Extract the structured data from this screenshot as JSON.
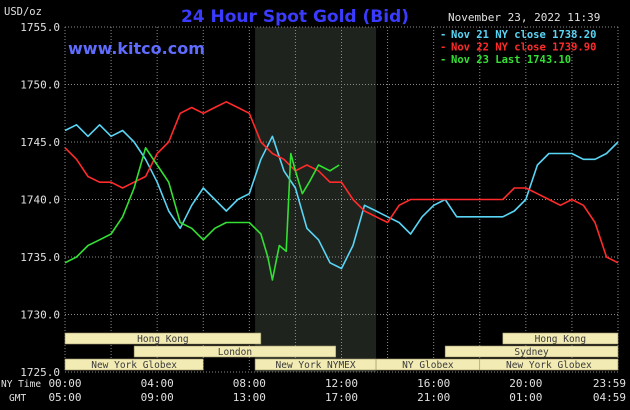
{
  "header": {
    "title": "24 Hour Spot Gold (Bid)",
    "units": "USD/oz",
    "timestamp": "November 23, 2022 11:39",
    "watermark": "www.kitco.com"
  },
  "colors": {
    "background": "#000000",
    "title": "#3b3bff",
    "grid": "#8a8a8a",
    "axis_text": "#e0e0e0",
    "shade": "#1e231e",
    "session_bar_bg": "#f2ebb4",
    "session_bar_text": "#3a3a3a",
    "watermark": "#5f6cff",
    "series": [
      "#59d5f5",
      "#ff2b2b",
      "#33e033"
    ]
  },
  "chart_data": {
    "type": "line",
    "title": "24 Hour Spot Gold (Bid)",
    "ylabel": "USD/oz",
    "ylim": [
      1725,
      1755
    ],
    "y_ticks": [
      "1755.0",
      "1750.0",
      "1745.0",
      "1740.0",
      "1735.0",
      "1730.0",
      "1725.0"
    ],
    "xlim_hours": [
      0,
      24
    ],
    "x_ticks_ny": [
      "00:00",
      "04:00",
      "08:00",
      "12:00",
      "16:00",
      "20:00",
      "23:59"
    ],
    "x_ticks_gmt": [
      "05:00",
      "09:00",
      "13:00",
      "17:00",
      "21:00",
      "01:00",
      "04:59"
    ],
    "x_axis_labels": [
      "NY Time",
      "GMT"
    ],
    "grid": true,
    "legend_position": "top-right",
    "series": [
      {
        "name": "Nov 21 NY close",
        "legend": "Nov 21 NY close 1738.20",
        "color": "#59d5f5",
        "x": [
          0,
          0.5,
          1,
          1.5,
          2,
          2.5,
          3,
          3.5,
          4,
          4.5,
          5,
          5.5,
          6,
          6.5,
          7,
          7.5,
          8,
          8.5,
          9,
          9.5,
          10,
          10.5,
          11,
          11.5,
          12,
          12.5,
          13,
          13.5,
          14,
          14.5,
          15,
          15.5,
          16,
          16.5,
          17,
          17.5,
          18,
          18.5,
          19,
          19.5,
          20,
          20.5,
          21,
          21.5,
          22,
          22.5,
          23,
          23.5,
          24
        ],
        "y": [
          1746,
          1746.5,
          1745.5,
          1746.5,
          1745.5,
          1746,
          1745,
          1743.5,
          1741.5,
          1739,
          1737.5,
          1739.5,
          1741,
          1740,
          1739,
          1740,
          1740.5,
          1743.5,
          1745.5,
          1742.5,
          1741,
          1737.5,
          1736.5,
          1734.5,
          1734,
          1736,
          1739.5,
          1739,
          1738.5,
          1738,
          1737,
          1738.5,
          1739.5,
          1740,
          1738.5,
          1738.5,
          1738.5,
          1738.5,
          1738.5,
          1739,
          1740,
          1743,
          1744,
          1744,
          1744,
          1743.5,
          1743.5,
          1744,
          1745
        ]
      },
      {
        "name": "Nov 22 NY close",
        "legend": "Nov 22 NY close 1739.90",
        "color": "#ff2b2b",
        "x": [
          0,
          0.5,
          1,
          1.5,
          2,
          2.5,
          3,
          3.5,
          4,
          4.5,
          5,
          5.5,
          6,
          6.5,
          7,
          7.5,
          8,
          8.5,
          9,
          9.5,
          10,
          10.5,
          11,
          11.5,
          12,
          12.5,
          13,
          13.5,
          14,
          14.5,
          15,
          15.5,
          16,
          16.5,
          17,
          17.5,
          18,
          18.5,
          19,
          19.5,
          20,
          20.5,
          21,
          21.5,
          22,
          22.5,
          23,
          23.5,
          24
        ],
        "y": [
          1744.5,
          1743.5,
          1742,
          1741.5,
          1741.5,
          1741,
          1741.5,
          1742,
          1744,
          1745,
          1747.5,
          1748,
          1747.5,
          1748,
          1748.5,
          1748,
          1747.5,
          1745,
          1744,
          1743.5,
          1742.5,
          1743,
          1742.5,
          1741.5,
          1741.5,
          1740,
          1739,
          1738.5,
          1738,
          1739.5,
          1740,
          1740,
          1740,
          1740,
          1740,
          1740,
          1740,
          1740,
          1740,
          1741,
          1741,
          1740.5,
          1740,
          1739.5,
          1740,
          1739.5,
          1738,
          1735,
          1734.5
        ]
      },
      {
        "name": "Nov 23 Last",
        "legend": "Nov 23 Last 1743.10",
        "color": "#33e033",
        "x": [
          0,
          0.5,
          1,
          1.5,
          2,
          2.5,
          3,
          3.5,
          4,
          4.5,
          5,
          5.5,
          6,
          6.5,
          7,
          7.5,
          8,
          8.5,
          8.8,
          9,
          9.3,
          9.6,
          9.8,
          10,
          10.3,
          10.6,
          11,
          11.5,
          11.9
        ],
        "y": [
          1734.5,
          1735,
          1736,
          1736.5,
          1737,
          1738.5,
          1741,
          1744.5,
          1743,
          1741.5,
          1738,
          1737.5,
          1736.5,
          1737.5,
          1738,
          1738,
          1738,
          1737,
          1735,
          1733,
          1736,
          1735.5,
          1744,
          1742.5,
          1740.5,
          1741.5,
          1743,
          1742.5,
          1743
        ]
      }
    ],
    "shaded_region_hours": [
      8.25,
      13.5
    ]
  },
  "sessions": [
    {
      "name": "Hong Kong",
      "start": 0,
      "end": 8.5,
      "row": 0
    },
    {
      "name": "Hong Kong",
      "start": 19,
      "end": 24,
      "row": 0
    },
    {
      "name": "London",
      "start": 3,
      "end": 11.75,
      "row": 1
    },
    {
      "name": "Sydney",
      "start": 16.5,
      "end": 24,
      "row": 1
    },
    {
      "name": "New York Globex",
      "start": 0,
      "end": 6,
      "row": 2
    },
    {
      "name": "New York NYMEX",
      "start": 8.25,
      "end": 13.5,
      "row": 2
    },
    {
      "name": "NY Globex",
      "start": 13.5,
      "end": 18,
      "row": 2
    },
    {
      "name": "New York Globex",
      "start": 18,
      "end": 24,
      "row": 2
    }
  ]
}
